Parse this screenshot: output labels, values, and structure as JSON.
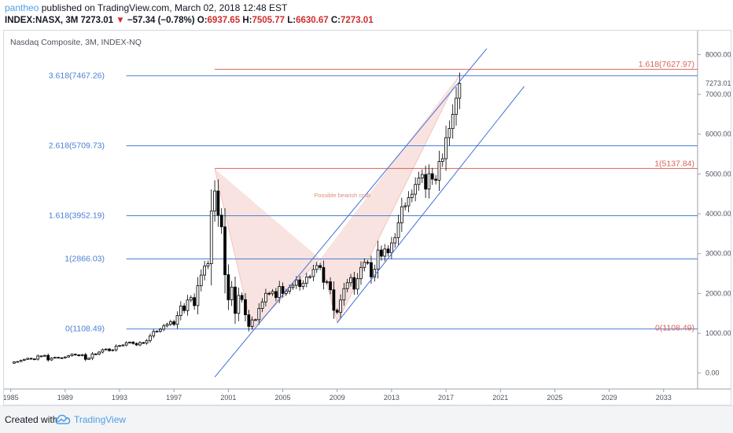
{
  "header": {
    "author": "pantheo",
    "published_text": "published on TradingView.com, March 02, 2018 12:48 EST",
    "symbol": "INDEX:NASX, 3M",
    "last": "7273.01",
    "change_arrow": "▼",
    "change": "−57.34 (−0.78%)",
    "o_label": "O:",
    "o_value": "6937.65",
    "h_label": "H:",
    "h_value": "7505.77",
    "l_label": "L:",
    "l_value": "6630.67",
    "c_label": "C:",
    "c_value": "7273.01"
  },
  "footer": {
    "created_with": "Created with",
    "brand": "TradingView"
  },
  "colors": {
    "up_candle": "#ffffff",
    "down_candle": "#000000",
    "fib_blue": "#4a7fd6",
    "fib_red": "#d9625a",
    "pattern_fill": "#f7d9d5",
    "channel": "#3f6fd8"
  },
  "chart_data": {
    "type": "candlestick",
    "title": "Nasdaq Composite, 3M, INDEX-NQ",
    "x_ticks": [
      "1985",
      "1989",
      "1993",
      "1997",
      "2001",
      "2005",
      "2009",
      "2013",
      "2017",
      "2021",
      "2025",
      "2029",
      "2033"
    ],
    "y_ticks": [
      "0.00",
      "1000.00",
      "2000.00",
      "3000.00",
      "4000.00",
      "5000.00",
      "6000.00",
      "7000.00",
      "8000.00"
    ],
    "ylim": [
      -400,
      8600
    ],
    "xlim": [
      1984.5,
      2035.5
    ],
    "last_price_label": "7273.01",
    "quarterly_close": [
      [
        1985.0,
        248
      ],
      [
        1985.25,
        280
      ],
      [
        1985.5,
        290
      ],
      [
        1985.75,
        320
      ],
      [
        1986.0,
        345
      ],
      [
        1986.25,
        370
      ],
      [
        1986.5,
        355
      ],
      [
        1986.75,
        350
      ],
      [
        1987.0,
        430
      ],
      [
        1987.25,
        425
      ],
      [
        1987.5,
        445
      ],
      [
        1987.75,
        330
      ],
      [
        1988.0,
        375
      ],
      [
        1988.25,
        395
      ],
      [
        1988.5,
        385
      ],
      [
        1988.75,
        380
      ],
      [
        1989.0,
        405
      ],
      [
        1989.25,
        435
      ],
      [
        1989.5,
        473
      ],
      [
        1989.75,
        455
      ],
      [
        1990.0,
        435
      ],
      [
        1990.25,
        462
      ],
      [
        1990.5,
        345
      ],
      [
        1990.75,
        373
      ],
      [
        1991.0,
        482
      ],
      [
        1991.25,
        475
      ],
      [
        1991.5,
        527
      ],
      [
        1991.75,
        586
      ],
      [
        1992.0,
        603
      ],
      [
        1992.25,
        563
      ],
      [
        1992.5,
        583
      ],
      [
        1992.75,
        677
      ],
      [
        1993.0,
        690
      ],
      [
        1993.25,
        704
      ],
      [
        1993.5,
        763
      ],
      [
        1993.75,
        777
      ],
      [
        1994.0,
        743
      ],
      [
        1994.25,
        706
      ],
      [
        1994.5,
        765
      ],
      [
        1994.75,
        752
      ],
      [
        1995.0,
        817
      ],
      [
        1995.25,
        933
      ],
      [
        1995.5,
        1044
      ],
      [
        1995.75,
        1052
      ],
      [
        1996.0,
        1101
      ],
      [
        1996.25,
        1185
      ],
      [
        1996.5,
        1227
      ],
      [
        1996.75,
        1291
      ],
      [
        1997.0,
        1222
      ],
      [
        1997.25,
        1443
      ],
      [
        1997.5,
        1686
      ],
      [
        1997.75,
        1570
      ],
      [
        1998.0,
        1835
      ],
      [
        1998.25,
        1895
      ],
      [
        1998.5,
        1694
      ],
      [
        1998.75,
        2193
      ],
      [
        1999.0,
        2461
      ],
      [
        1999.25,
        2686
      ],
      [
        1999.5,
        2746
      ],
      [
        1999.75,
        4069
      ],
      [
        2000.0,
        4573
      ],
      [
        2000.25,
        3966
      ],
      [
        2000.5,
        3673
      ],
      [
        2000.75,
        2471
      ],
      [
        2001.0,
        1840
      ],
      [
        2001.25,
        2160
      ],
      [
        2001.5,
        1499
      ],
      [
        2001.75,
        1950
      ],
      [
        2002.0,
        1845
      ],
      [
        2002.25,
        1463
      ],
      [
        2002.5,
        1172
      ],
      [
        2002.75,
        1336
      ],
      [
        2003.0,
        1341
      ],
      [
        2003.25,
        1623
      ],
      [
        2003.5,
        1787
      ],
      [
        2003.75,
        2003
      ],
      [
        2004.0,
        1994
      ],
      [
        2004.25,
        2048
      ],
      [
        2004.5,
        1897
      ],
      [
        2004.75,
        2175
      ],
      [
        2005.0,
        1999
      ],
      [
        2005.25,
        2057
      ],
      [
        2005.5,
        2152
      ],
      [
        2005.75,
        2205
      ],
      [
        2006.0,
        2340
      ],
      [
        2006.25,
        2172
      ],
      [
        2006.5,
        2258
      ],
      [
        2006.75,
        2415
      ],
      [
        2007.0,
        2422
      ],
      [
        2007.25,
        2603
      ],
      [
        2007.5,
        2701
      ],
      [
        2007.75,
        2652
      ],
      [
        2008.0,
        2279
      ],
      [
        2008.25,
        2293
      ],
      [
        2008.5,
        2092
      ],
      [
        2008.75,
        1577
      ],
      [
        2009.0,
        1528
      ],
      [
        2009.25,
        1835
      ],
      [
        2009.5,
        2122
      ],
      [
        2009.75,
        2269
      ],
      [
        2010.0,
        2398
      ],
      [
        2010.25,
        2109
      ],
      [
        2010.5,
        2369
      ],
      [
        2010.75,
        2653
      ],
      [
        2011.0,
        2781
      ],
      [
        2011.25,
        2774
      ],
      [
        2011.5,
        2415
      ],
      [
        2011.75,
        2605
      ],
      [
        2012.0,
        3091
      ],
      [
        2012.25,
        2935
      ],
      [
        2012.5,
        3116
      ],
      [
        2012.75,
        3020
      ],
      [
        2013.0,
        3268
      ],
      [
        2013.25,
        3403
      ],
      [
        2013.5,
        3771
      ],
      [
        2013.75,
        4177
      ],
      [
        2014.0,
        4199
      ],
      [
        2014.25,
        4408
      ],
      [
        2014.5,
        4493
      ],
      [
        2014.75,
        4736
      ],
      [
        2015.0,
        4901
      ],
      [
        2015.25,
        4987
      ],
      [
        2015.5,
        4620
      ],
      [
        2015.75,
        5007
      ],
      [
        2016.0,
        4870
      ],
      [
        2016.25,
        4843
      ],
      [
        2016.5,
        5312
      ],
      [
        2016.75,
        5383
      ],
      [
        2017.0,
        5912
      ],
      [
        2017.25,
        6140
      ],
      [
        2017.5,
        6496
      ],
      [
        2017.75,
        6903
      ],
      [
        2018.0,
        7273
      ]
    ],
    "fib_levels_blue": [
      {
        "label": "3.618(7467.26)",
        "value": 7467.26
      },
      {
        "label": "2.618(5709.73)",
        "value": 5709.73
      },
      {
        "label": "1.618(3952.19)",
        "value": 3952.19
      },
      {
        "label": "1(2866.03)",
        "value": 2866.03
      },
      {
        "label": "0(1108.49)",
        "value": 1108.49
      }
    ],
    "fib_levels_red": [
      {
        "label": "1.618(7627.97)",
        "value": 7627.97
      },
      {
        "label": "1(5137.84)",
        "value": 5137.84
      },
      {
        "label": "0(1108.49)",
        "value": 1108.49
      }
    ],
    "pattern_label": "Possible bearish crab",
    "pattern_points": [
      [
        2000.0,
        5132
      ],
      [
        2002.75,
        1108
      ],
      [
        2007.75,
        2866
      ],
      [
        2009.0,
        1265
      ],
      [
        2018.0,
        7505
      ]
    ],
    "channel_lines": [
      {
        "from": [
          2000.0,
          -100
        ],
        "to": [
          2020.0,
          8150
        ]
      },
      {
        "from": [
          2009.0,
          1265
        ],
        "to": [
          2022.75,
          7200
        ]
      }
    ]
  }
}
